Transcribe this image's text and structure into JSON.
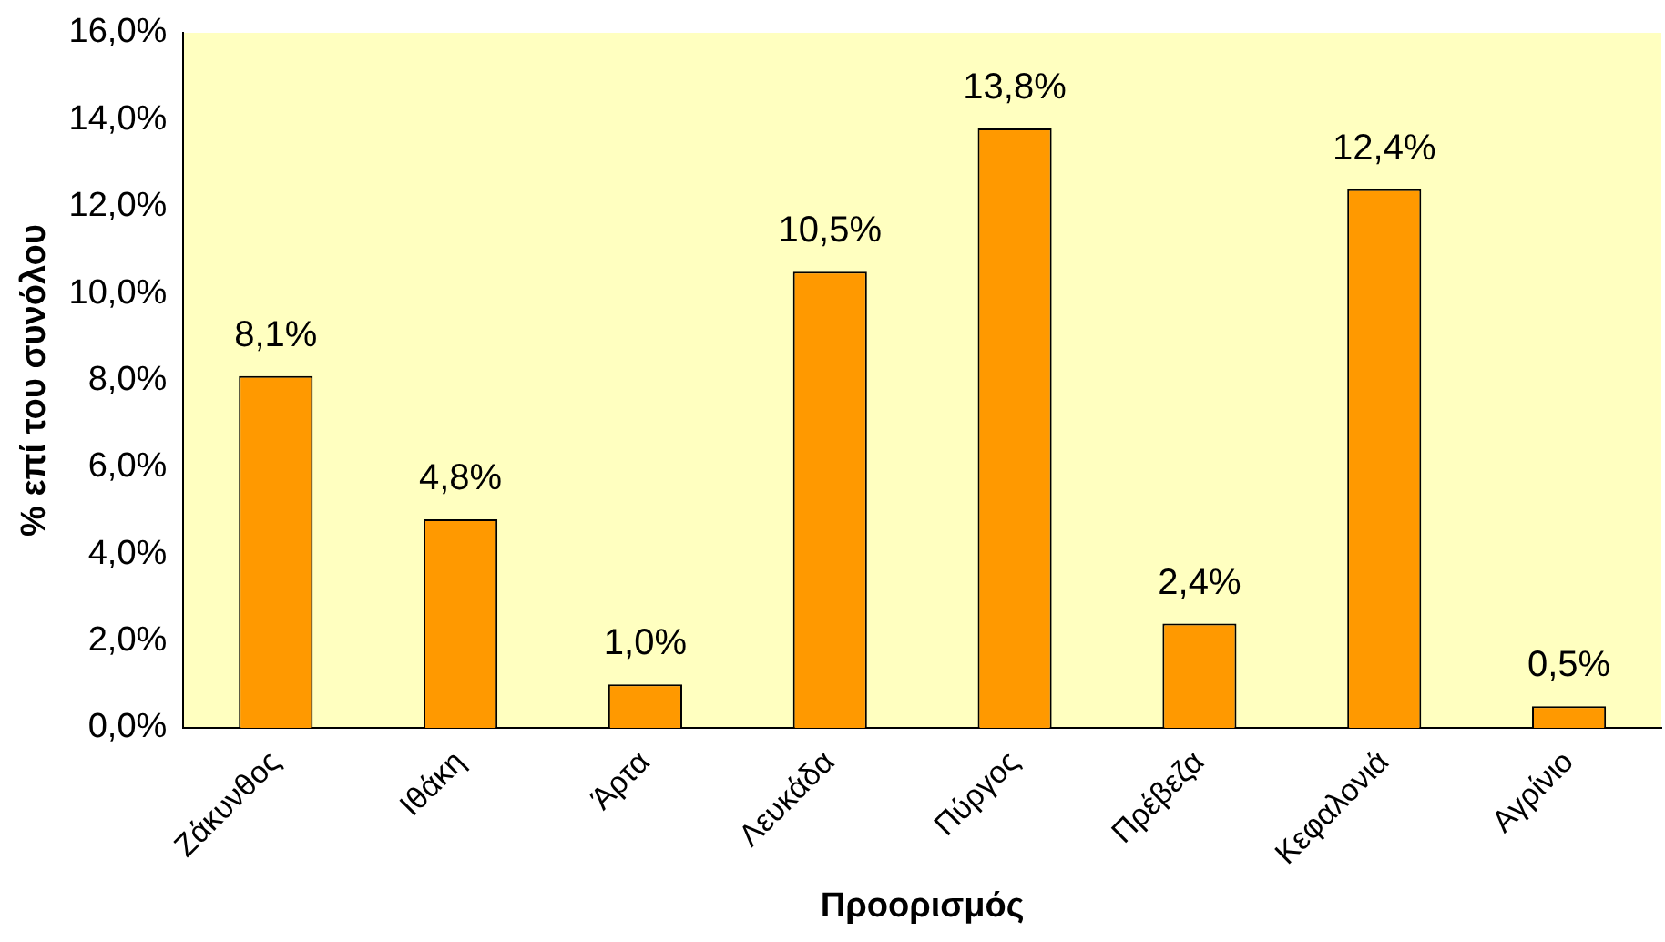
{
  "chart_data": {
    "type": "bar",
    "xlabel": "Προορισμός",
    "ylabel": "% επί του συνόλου",
    "categories": [
      "Ζάκυνθος",
      "Ιθάκη",
      "Άρτα",
      "Λευκάδα",
      "Πύργος",
      "Πρέβεζα",
      "Κεφαλονιά",
      "Αγρίνιο"
    ],
    "values": [
      8.1,
      4.8,
      1.0,
      10.5,
      13.8,
      2.4,
      12.4,
      0.5
    ],
    "value_labels": [
      "8,1%",
      "4,8%",
      "1,0%",
      "10,5%",
      "13,8%",
      "2,4%",
      "12,4%",
      "0,5%"
    ],
    "color": "#ff9900",
    "ylim": [
      0,
      16
    ],
    "yticks": [
      {
        "value": 0,
        "label": "0,0%"
      },
      {
        "value": 2,
        "label": "2,0%"
      },
      {
        "value": 4,
        "label": "4,0%"
      },
      {
        "value": 6,
        "label": "6,0%"
      },
      {
        "value": 8,
        "label": "8,0%"
      },
      {
        "value": 10,
        "label": "10,0%"
      },
      {
        "value": 12,
        "label": "12,0%"
      },
      {
        "value": 14,
        "label": "14,0%"
      },
      {
        "value": 16,
        "label": "16,0%"
      }
    ],
    "grid": false,
    "legend": false
  }
}
